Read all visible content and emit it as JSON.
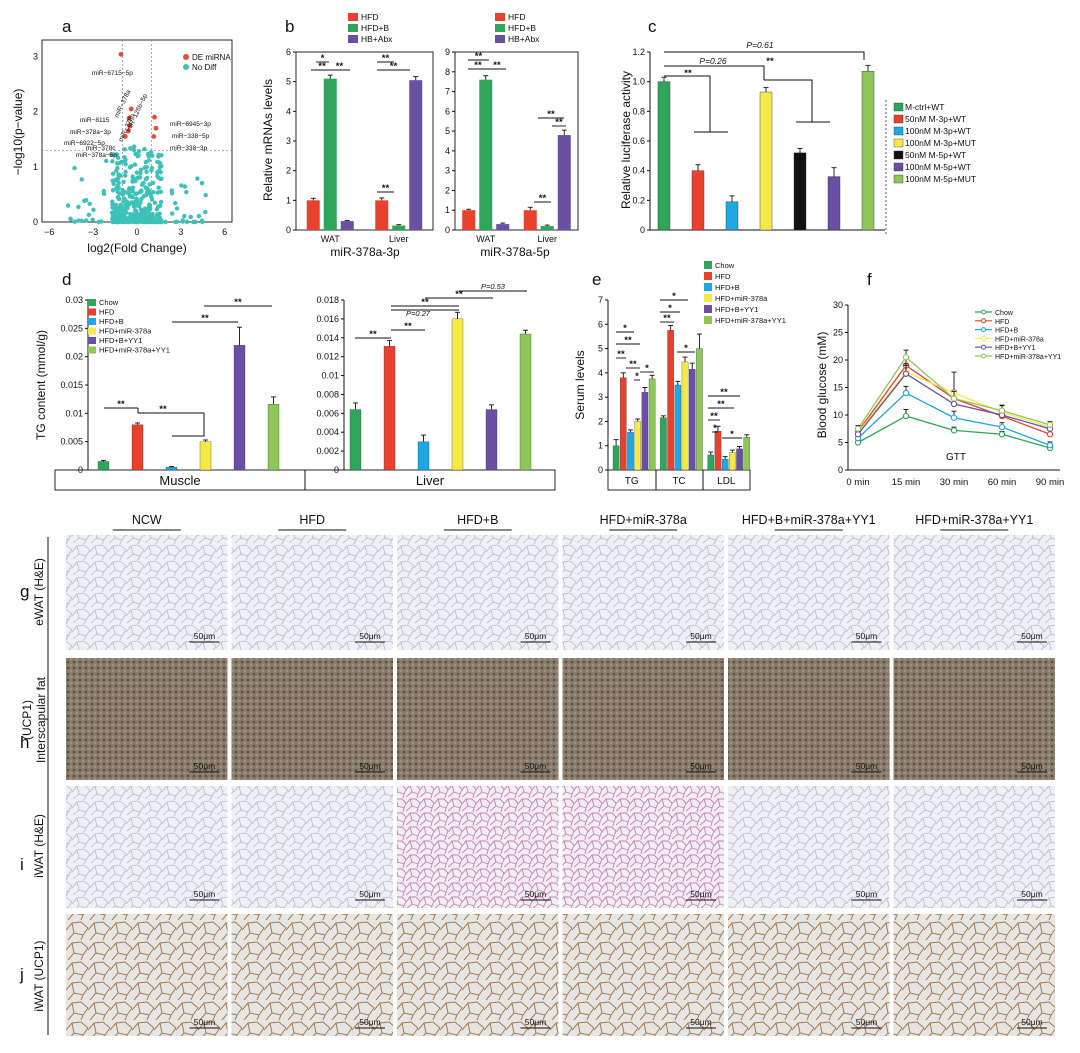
{
  "panel_labels": [
    "a",
    "b",
    "c",
    "d",
    "e",
    "f",
    "g",
    "h",
    "i",
    "j"
  ],
  "colors": {
    "red": "#e8412e",
    "green": "#2fa55b",
    "purple": "#6a4fa3",
    "blue": "#1ea7e0",
    "yellow": "#f5e94a",
    "black": "#111111",
    "lightgreen": "#8fc65a",
    "teal": "#3cc2b8",
    "de": "#e84a3c"
  },
  "volcano": {
    "xlabel": "log2(Fold Change)",
    "ylabel": "−log10(p−value)",
    "legend": [
      "DE miRNA",
      "No Diff"
    ],
    "labels": [
      "miR−6715−5p",
      "miR−378a",
      "miR−8115",
      "miR−126b−5p",
      "miR−378a−3p",
      "miR−378b",
      "miR−6922−5p",
      "miR−378c",
      "miR−378a−5p",
      "miR−6945−3p",
      "miR−338−5p",
      "miR−338−3p"
    ]
  },
  "legends": {
    "b": [
      "HFD",
      "HFD+B",
      "HB+Abx"
    ],
    "c": [
      "M-ctrl+WT",
      "50nM M-3p+WT",
      "100nM M-3p+WT",
      "100nM M-3p+MUT",
      "50nM M-5p+WT",
      "100nM M-5p+WT",
      "100nM M-5p+MUT"
    ],
    "d": [
      "Chow",
      "HFD",
      "HFD+B",
      "HFD+miR-378a",
      "HFD+B+YY1",
      "HFD+miR-378a+YY1"
    ],
    "e": [
      "Chow",
      "HFD",
      "HFD+B",
      "HFD+miR-378a",
      "HFD+B+YY1",
      "HFD+miR-378a+YY1"
    ],
    "f": [
      "Chow",
      "HFD",
      "HFD+B",
      "HFD+miR-378a",
      "HFD+B+YY1",
      "HFD+miR-378a+YY1"
    ]
  },
  "annotations": {
    "p026": "P=0.26",
    "p061": "P=0.61",
    "p027": "P=0.27",
    "p053": "P=0.53",
    "ss": "**",
    "s": "*"
  },
  "chart_data": [
    {
      "panel": "a",
      "type": "scatter",
      "xlabel": "log2(Fold Change)",
      "ylabel": "−log10(p−value)",
      "xlim": [
        -6.5,
        6.5
      ],
      "ylim": [
        0,
        3.3
      ],
      "xticks": [
        "−6",
        "−3",
        "0",
        "3",
        "6"
      ],
      "yticks": [
        "0",
        "1",
        "2",
        "3"
      ],
      "series": [
        {
          "name": "DE miRNA",
          "points": [
            [
              -1.1,
              3.04
            ],
            [
              -0.4,
              2.05
            ],
            [
              -0.55,
              1.88
            ],
            [
              -0.5,
              1.75
            ],
            [
              -0.6,
              1.65
            ],
            [
              -0.8,
              1.55
            ],
            [
              1.2,
              1.9
            ],
            [
              1.3,
              1.7
            ],
            [
              1.15,
              1.55
            ]
          ]
        },
        {
          "name": "No Diff"
        }
      ]
    },
    {
      "panel": "b-left",
      "type": "bar",
      "title": "miR-378a-3p",
      "ylabel": "Relative mRNAs levels",
      "categories": [
        "WAT",
        "Liver"
      ],
      "ylim": [
        0,
        6
      ],
      "yticks": [
        "0",
        "1",
        "2",
        "3",
        "4",
        "5",
        "6"
      ],
      "series": [
        {
          "name": "HFD",
          "values": [
            1.0,
            1.0
          ],
          "err": [
            0.07,
            0.08
          ]
        },
        {
          "name": "HFD+B",
          "values": [
            5.1,
            0.15
          ],
          "err": [
            0.12,
            0.03
          ]
        },
        {
          "name": "HB+Abx",
          "values": [
            0.3,
            5.05
          ],
          "err": [
            0.02,
            0.12
          ]
        }
      ]
    },
    {
      "panel": "b-right",
      "type": "bar",
      "title": "miR-378a-5p",
      "categories": [
        "WAT",
        "Liver"
      ],
      "ylim": [
        0,
        9
      ],
      "yticks": [
        "0",
        "1",
        "2",
        "3",
        "4",
        "5",
        "6",
        "7",
        "8",
        "9"
      ],
      "series": [
        {
          "name": "HFD",
          "values": [
            1.0,
            1.0
          ],
          "err": [
            0.05,
            0.15
          ]
        },
        {
          "name": "HFD+B",
          "values": [
            7.6,
            0.2
          ],
          "err": [
            0.2,
            0.05
          ]
        },
        {
          "name": "HB+Abx",
          "values": [
            0.3,
            4.8
          ],
          "err": [
            0.05,
            0.25
          ]
        }
      ]
    },
    {
      "panel": "c",
      "type": "bar",
      "ylabel": "Relative luciferase activity",
      "ylim": [
        0,
        1.2
      ],
      "yticks": [
        "0",
        "0.2",
        "0.4",
        "0.6",
        "0.8",
        "1.0",
        "1.2"
      ],
      "categories": [
        "M-ctrl+WT",
        "50nM M-3p+WT",
        "100nM M-3p+WT",
        "100nM M-3p+MUT",
        "50nM M-5p+WT",
        "100nM M-5p+WT",
        "100nM M-5p+MUT"
      ],
      "values": [
        1.0,
        0.4,
        0.19,
        0.93,
        0.52,
        0.36,
        1.07
      ],
      "err": [
        0.03,
        0.04,
        0.04,
        0.03,
        0.03,
        0.06,
        0.04
      ]
    },
    {
      "panel": "d-muscle",
      "type": "bar",
      "ylabel": "TG content (mmol/g)",
      "xlabel": "Muscle",
      "ylim": [
        0,
        0.03
      ],
      "yticks": [
        "0",
        "0.005",
        "0.01",
        "0.015",
        "0.02",
        "0.025",
        "0.03"
      ],
      "categories": [
        "Chow",
        "HFD",
        "HFD+B",
        "HFD+miR-378a",
        "HFD+B+YY1",
        "HFD+miR-378a+YY1"
      ],
      "values": [
        0.0015,
        0.008,
        0.0005,
        0.005,
        0.022,
        0.0116
      ],
      "err": [
        0.0002,
        0.0003,
        0.0001,
        0.0003,
        0.0032,
        0.0013
      ]
    },
    {
      "panel": "d-liver",
      "type": "bar",
      "xlabel": "Liver",
      "ylim": [
        0,
        0.018
      ],
      "yticks": [
        "0",
        "0.002",
        "0.004",
        "0.006",
        "0.008",
        "0.01",
        "0.012",
        "0.014",
        "0.016",
        "0.018"
      ],
      "categories": [
        "Chow",
        "HFD",
        "HFD+B",
        "HFD+miR-378a",
        "HFD+B+YY1",
        "HFD+miR-378a+YY1"
      ],
      "values": [
        0.0064,
        0.0131,
        0.003,
        0.016,
        0.0064,
        0.0144
      ],
      "err": [
        0.0007,
        0.0006,
        0.0007,
        0.0007,
        0.0005,
        0.0004
      ]
    },
    {
      "panel": "e",
      "type": "bar",
      "ylabel": "Serum levels",
      "categories": [
        "TG",
        "TC",
        "LDL"
      ],
      "ylim": [
        0,
        7
      ],
      "yticks": [
        "0",
        "1",
        "2",
        "3",
        "4",
        "5",
        "6",
        "7"
      ],
      "series": [
        {
          "name": "Chow",
          "values": [
            1.0,
            2.15,
            0.62
          ],
          "err": [
            0.25,
            0.08,
            0.12
          ]
        },
        {
          "name": "HFD",
          "values": [
            3.8,
            5.75,
            1.6
          ],
          "err": [
            0.2,
            0.2,
            0.2
          ]
        },
        {
          "name": "HFD+B",
          "values": [
            1.55,
            3.5,
            0.45
          ],
          "err": [
            0.1,
            0.15,
            0.1
          ]
        },
        {
          "name": "HFD+miR-378a",
          "values": [
            2.0,
            4.45,
            0.72
          ],
          "err": [
            0.1,
            0.2,
            0.1
          ]
        },
        {
          "name": "HFD+B+YY1",
          "values": [
            3.2,
            4.15,
            0.87
          ],
          "err": [
            0.2,
            0.25,
            0.1
          ]
        },
        {
          "name": "HFD+miR-378a+YY1",
          "values": [
            3.75,
            5.0,
            1.35
          ],
          "err": [
            0.15,
            0.6,
            0.1
          ]
        }
      ]
    },
    {
      "panel": "f",
      "type": "line",
      "ylabel": "Blood glucose (mM)",
      "title": "GTT",
      "categories": [
        "0 min",
        "15 min",
        "30 min",
        "60 min",
        "90 min"
      ],
      "ylim": [
        0,
        30
      ],
      "yticks": [
        "0",
        "5",
        "10",
        "15",
        "20",
        "25",
        "30"
      ],
      "series": [
        {
          "name": "Chow",
          "values": [
            5.0,
            9.8,
            7.2,
            6.5,
            4.0
          ],
          "err": [
            0.4,
            1.2,
            0.6,
            0.5,
            0.4
          ]
        },
        {
          "name": "HFD",
          "values": [
            7.0,
            19.0,
            13.0,
            9.8,
            6.5
          ],
          "err": [
            0.6,
            1.5,
            1.5,
            1.2,
            0.8
          ]
        },
        {
          "name": "HFD+B",
          "values": [
            5.8,
            14.0,
            9.5,
            7.8,
            4.5
          ],
          "err": [
            0.5,
            1.2,
            1.2,
            0.8,
            0.6
          ]
        },
        {
          "name": "HFD+miR-378a",
          "values": [
            6.8,
            17.8,
            14.0,
            10.5,
            7.8
          ],
          "err": [
            0.5,
            1.5,
            3.8,
            1.2,
            0.7
          ]
        },
        {
          "name": "HFD+B+YY1",
          "values": [
            6.5,
            17.5,
            12.0,
            10.0,
            7.5
          ],
          "err": [
            0.5,
            1.5,
            1.2,
            1.0,
            0.6
          ]
        },
        {
          "name": "HFD+miR-378a+YY1",
          "values": [
            7.5,
            20.5,
            13.0,
            10.8,
            8.2
          ],
          "err": [
            0.6,
            1.3,
            1.3,
            1.0,
            0.6
          ]
        }
      ]
    }
  ],
  "histology": {
    "columns": [
      "NCW",
      "HFD",
      "HFD+B",
      "HFD+miR-378a",
      "HFD+B+miR-378a+YY1",
      "HFD+miR-378a+YY1"
    ],
    "rows": [
      {
        "letter": "g",
        "label": "eWAT (H&E)"
      },
      {
        "letter": "h",
        "label": "Interscapular fat",
        "label2": "(UCP1)"
      },
      {
        "letter": "i",
        "label": "iWAT (H&E)"
      },
      {
        "letter": "j",
        "label": "iWAT (UCP1)"
      }
    ],
    "scale": "50μm"
  }
}
